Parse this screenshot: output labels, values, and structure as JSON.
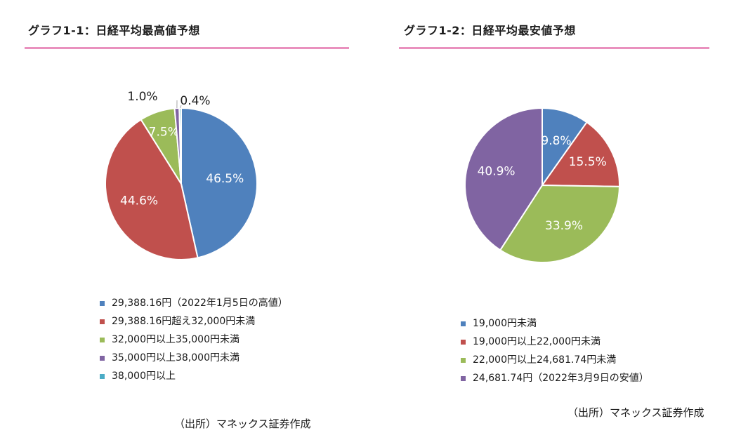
{
  "colors": {
    "blue": "#4f81bd",
    "red": "#c0504d",
    "green": "#9bbb59",
    "purple": "#8064a2",
    "cyan": "#4bacc6",
    "rule": "#e991be"
  },
  "chart_data": [
    {
      "type": "pie",
      "title": "グラフ1-1：日経平均最高値予想",
      "categories": [
        "29,388.16円（2022年1月5日の高値）",
        "29,388.16円超え32,000円未満",
        "32,000円以上35,000円未満",
        "35,000円以上38,000円未満",
        "38,000円以上"
      ],
      "values": [
        46.5,
        44.6,
        7.5,
        1.0,
        0.4
      ],
      "labels": [
        "46.5%",
        "44.6%",
        "7.5%",
        "1.0%",
        "0.4%"
      ],
      "series_colors": [
        "#4f81bd",
        "#c0504d",
        "#9bbb59",
        "#8064a2",
        "#4bacc6"
      ],
      "legend_position": "bottom",
      "source": "（出所）マネックス証券作成"
    },
    {
      "type": "pie",
      "title": "グラフ1-2：日経平均最安値予想",
      "categories": [
        "19,000円未満",
        "19,000円以上22,000円未満",
        "22,000円以上24,681.74円未満",
        "24,681.74円（2022年3月9日の安値）"
      ],
      "values": [
        9.8,
        15.5,
        33.9,
        40.9
      ],
      "labels": [
        "9.8%",
        "15.5%",
        "33.9%",
        "40.9%"
      ],
      "series_colors": [
        "#4f81bd",
        "#c0504d",
        "#9bbb59",
        "#8064a2"
      ],
      "legend_position": "bottom",
      "source": "（出所）マネックス証券作成"
    }
  ]
}
